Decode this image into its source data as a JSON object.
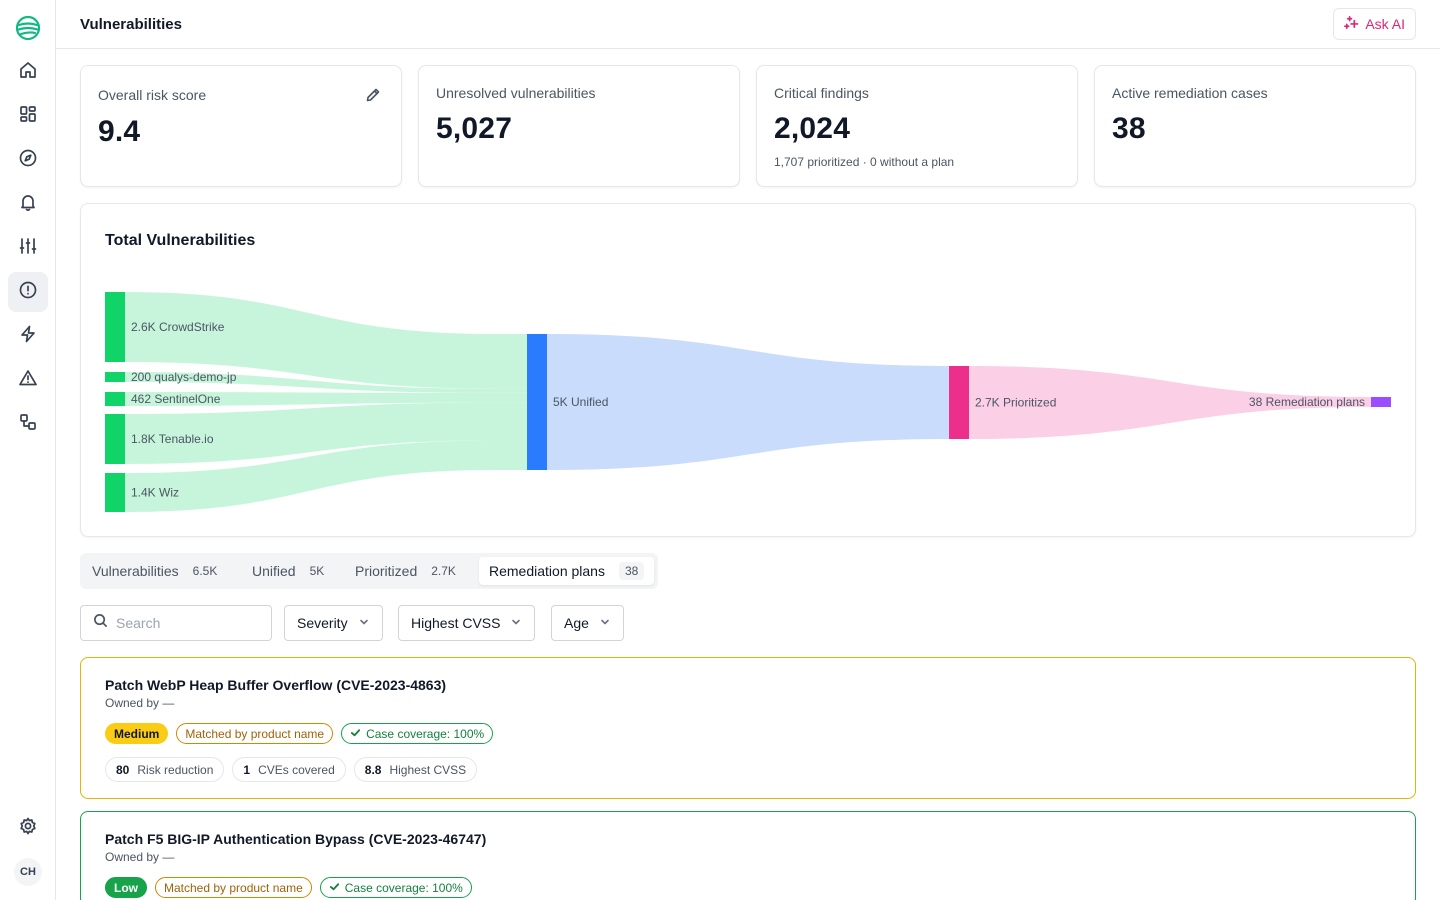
{
  "header": {
    "title": "Vulnerabilities",
    "ask_ai_label": "Ask AI"
  },
  "sidebar": {
    "items": [
      {
        "name": "home",
        "icon": "home-icon"
      },
      {
        "name": "dashboards",
        "icon": "grid-icon"
      },
      {
        "name": "explore",
        "icon": "compass-icon"
      },
      {
        "name": "notifications",
        "icon": "bell-icon"
      },
      {
        "name": "controls",
        "icon": "sliders-icon"
      },
      {
        "name": "vulnerabilities",
        "icon": "alert-circle-icon",
        "active": true
      },
      {
        "name": "automations",
        "icon": "bolt-icon"
      },
      {
        "name": "alerts",
        "icon": "warning-icon"
      },
      {
        "name": "integrations",
        "icon": "workflow-icon"
      }
    ],
    "settings_icon": "gear-icon",
    "avatar_initials": "CH"
  },
  "stats": [
    {
      "label": "Overall risk score",
      "value": "9.4",
      "sub": ""
    },
    {
      "label": "Unresolved vulnerabilities",
      "value": "5,027",
      "sub": ""
    },
    {
      "label": "Critical findings",
      "value": "2,024",
      "sub": "1,707 prioritized · 0 without a plan"
    },
    {
      "label": "Active remediation cases",
      "value": "38",
      "sub": ""
    }
  ],
  "sankey": {
    "title": "Total Vulnerabilities",
    "sources": [
      {
        "label": "2.6K CrowdStrike",
        "value": 2600
      },
      {
        "label": "200 qualys-demo-jp",
        "value": 200
      },
      {
        "label": "462 SentinelOne",
        "value": 462
      },
      {
        "label": "1.8K Tenable.io",
        "value": 1800
      },
      {
        "label": "1.4K Wiz",
        "value": 1400
      }
    ],
    "stages": [
      {
        "label": "5K Unified",
        "value": 5000
      },
      {
        "label": "2.7K Prioritized",
        "value": 2700
      },
      {
        "label": "38 Remediation plans",
        "value": 38
      }
    ],
    "colors": {
      "source_node": "#10d468",
      "source_flow": "#c4f4d9",
      "unified_node": "#2b7bff",
      "unified_flow": "#c9dcfb",
      "prioritized_node": "#ec2f8b",
      "prioritized_flow": "#fbcfe6",
      "plans_node": "#9b4dff"
    }
  },
  "tabs": [
    {
      "label": "Vulnerabilities",
      "count": "6.5K"
    },
    {
      "label": "Unified",
      "count": "5K"
    },
    {
      "label": "Prioritized",
      "count": "2.7K"
    },
    {
      "label": "Remediation plans",
      "count": "38",
      "active": true
    }
  ],
  "filters": {
    "search_placeholder": "Search",
    "severity": "Severity",
    "cvss": "Highest CVSS",
    "age": "Age"
  },
  "plans": [
    {
      "title": "Patch WebP Heap Buffer Overflow (CVE-2023-4863)",
      "owner": "Owned by —",
      "severity": "Medium",
      "match": "Matched by product name",
      "coverage": "Case coverage: 100%",
      "risk_reduction": "80",
      "risk_reduction_label": "Risk reduction",
      "cves": "1",
      "cves_label": "CVEs covered",
      "cvss": "8.8",
      "cvss_label": "Highest CVSS"
    },
    {
      "title": "Patch F5 BIG-IP Authentication Bypass (CVE-2023-46747)",
      "owner": "Owned by —",
      "severity": "Low",
      "match": "Matched by product name",
      "coverage": "Case coverage: 100%"
    }
  ]
}
